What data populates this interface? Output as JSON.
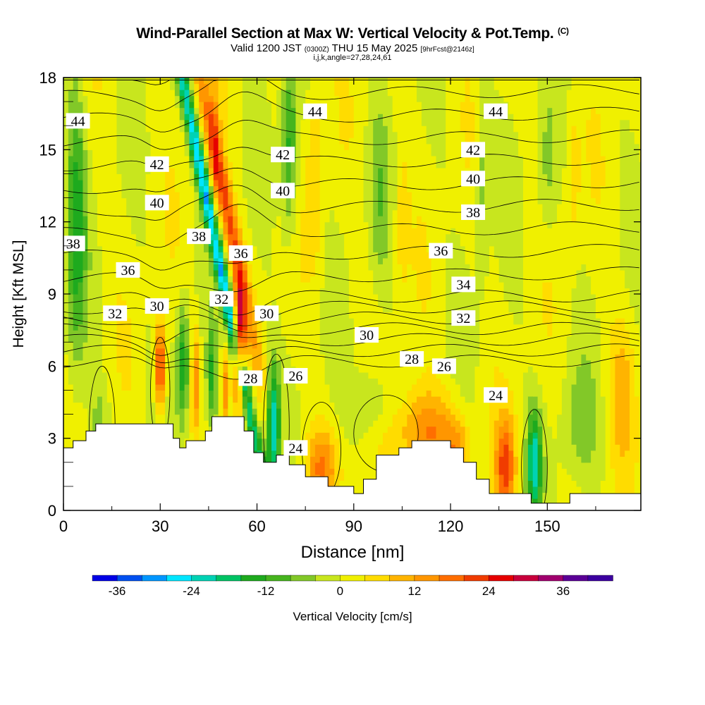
{
  "header": {
    "title": "Wind-Parallel Section at Max W: Vertical Velocity & Pot.Temp.",
    "copyright": "(C)",
    "valid_prefix": "Valid 1200 JST",
    "valid_utc": "(0300Z)",
    "valid_date": "THU 15 May 2025",
    "forecast": "[9hrFcst@2146z]",
    "indices": "i,j,k,angle=27,28,24,61"
  },
  "chart_data": {
    "type": "heatmap",
    "xlabel": "Distance [nm]",
    "ylabel": "Height [Kft MSL]",
    "xlim": [
      0,
      179
    ],
    "ylim": [
      0,
      18
    ],
    "x_ticks": [
      0,
      30,
      60,
      90,
      120,
      150
    ],
    "y_ticks": [
      0,
      3,
      6,
      9,
      12,
      15,
      18
    ],
    "colorbar": {
      "label": "Vertical Velocity [cm/s]",
      "ticks": [
        -36,
        -24,
        -12,
        0,
        12,
        24,
        36
      ],
      "levels": [
        -40,
        -36,
        -32,
        -28,
        -24,
        -20,
        -16,
        -12,
        -8,
        -4,
        0,
        4,
        8,
        12,
        16,
        20,
        24,
        28,
        32,
        36,
        40,
        44
      ],
      "colors": [
        "#0000e6",
        "#0050f0",
        "#0096ff",
        "#00e6ff",
        "#00d2b4",
        "#00c364",
        "#1eaa1e",
        "#46b41e",
        "#82c828",
        "#c8e61e",
        "#f0f000",
        "#ffdc00",
        "#ffb400",
        "#ff9600",
        "#ff6e00",
        "#f03c00",
        "#e60000",
        "#c8003c",
        "#a0006e",
        "#5a0096",
        "#3c00a0"
      ]
    },
    "theta_labels": [
      {
        "text": "44",
        "x": 4.5,
        "y": 16.2
      },
      {
        "text": "44",
        "x": 78,
        "y": 16.6
      },
      {
        "text": "44",
        "x": 134,
        "y": 16.6
      },
      {
        "text": "42",
        "x": 29,
        "y": 14.4
      },
      {
        "text": "42",
        "x": 68,
        "y": 14.8
      },
      {
        "text": "42",
        "x": 127,
        "y": 15.0
      },
      {
        "text": "40",
        "x": 29,
        "y": 12.8
      },
      {
        "text": "40",
        "x": 68,
        "y": 13.3
      },
      {
        "text": "40",
        "x": 127,
        "y": 13.8
      },
      {
        "text": "38",
        "x": 3,
        "y": 11.1
      },
      {
        "text": "38",
        "x": 42,
        "y": 11.4
      },
      {
        "text": "38",
        "x": 127,
        "y": 12.4
      },
      {
        "text": "36",
        "x": 20,
        "y": 10.0
      },
      {
        "text": "36",
        "x": 55,
        "y": 10.7
      },
      {
        "text": "36",
        "x": 117,
        "y": 10.8
      },
      {
        "text": "34",
        "x": 124,
        "y": 9.4
      },
      {
        "text": "32",
        "x": 16,
        "y": 8.2
      },
      {
        "text": "32",
        "x": 49,
        "y": 8.8
      },
      {
        "text": "32",
        "x": 124,
        "y": 8.0
      },
      {
        "text": "30",
        "x": 29,
        "y": 8.5
      },
      {
        "text": "30",
        "x": 63,
        "y": 8.2
      },
      {
        "text": "30",
        "x": 94,
        "y": 7.3
      },
      {
        "text": "28",
        "x": 58,
        "y": 5.5
      },
      {
        "text": "28",
        "x": 108,
        "y": 6.3
      },
      {
        "text": "26",
        "x": 72,
        "y": 5.6
      },
      {
        "text": "26",
        "x": 118,
        "y": 6.0
      },
      {
        "text": "24",
        "x": 72,
        "y": 2.6
      },
      {
        "text": "24",
        "x": 134,
        "y": 4.8
      }
    ],
    "terrain": [
      [
        0,
        2.6
      ],
      [
        3,
        2.9
      ],
      [
        7,
        3.3
      ],
      [
        10,
        3.6
      ],
      [
        33,
        3.6
      ],
      [
        34,
        3.0
      ],
      [
        36,
        2.6
      ],
      [
        38,
        2.9
      ],
      [
        44,
        3.3
      ],
      [
        46,
        3.9
      ],
      [
        54,
        3.9
      ],
      [
        56,
        3.3
      ],
      [
        59,
        2.4
      ],
      [
        62,
        2.0
      ],
      [
        66,
        2.3
      ],
      [
        70,
        1.9
      ],
      [
        75,
        1.4
      ],
      [
        82,
        1.0
      ],
      [
        90,
        0.7
      ],
      [
        93,
        1.3
      ],
      [
        97,
        2.3
      ],
      [
        104,
        2.6
      ],
      [
        108,
        2.9
      ],
      [
        116,
        2.9
      ],
      [
        120,
        2.6
      ],
      [
        124,
        2.0
      ],
      [
        128,
        1.3
      ],
      [
        132,
        0.7
      ],
      [
        143,
        0.7
      ],
      [
        145,
        0.3
      ],
      [
        153,
        0.3
      ],
      [
        157,
        0.7
      ],
      [
        179,
        0.7
      ]
    ]
  }
}
